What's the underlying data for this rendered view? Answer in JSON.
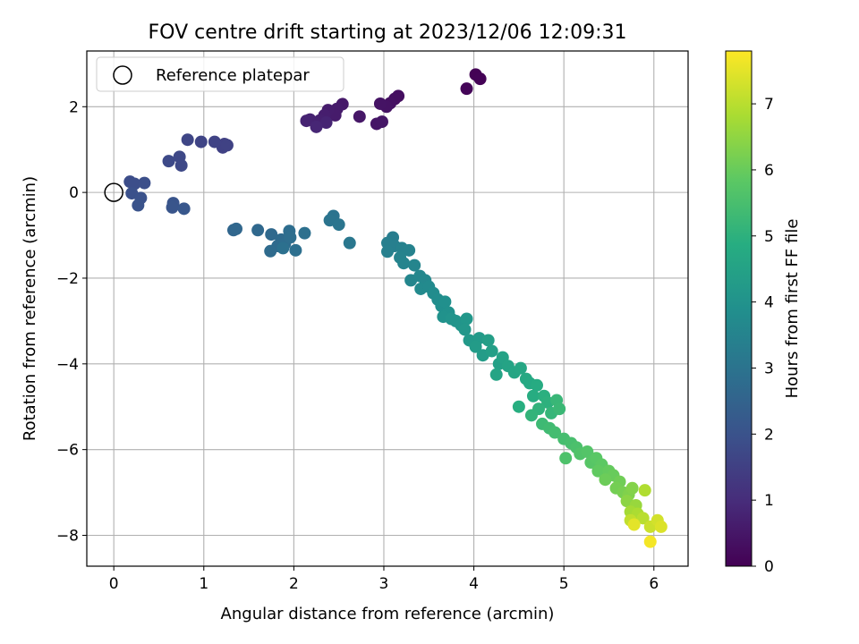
{
  "chart_data": {
    "type": "scatter",
    "title": "FOV centre drift starting at 2023/12/06 12:09:31",
    "xlabel": "Angular distance from reference (arcmin)",
    "ylabel": "Rotation from reference (arcmin)",
    "xlim": [
      -0.3,
      6.38
    ],
    "ylim": [
      -8.72,
      3.3
    ],
    "xticks": [
      0,
      1,
      2,
      3,
      4,
      5,
      6
    ],
    "yticks": [
      -8,
      -6,
      -4,
      -2,
      0,
      2
    ],
    "xtick_labels": [
      "0",
      "1",
      "2",
      "3",
      "4",
      "5",
      "6"
    ],
    "ytick_labels": [
      "−8",
      "−6",
      "−4",
      "−2",
      "0",
      "2"
    ],
    "grid": true,
    "legend": {
      "placement": "top-left",
      "entries": [
        "Reference platepar"
      ]
    },
    "reference_point": {
      "x": 0,
      "y": 0
    },
    "colorbar": {
      "label": "Hours from first FF file",
      "colormap": "viridis",
      "range": [
        0,
        7.8
      ],
      "ticks": [
        0,
        1,
        2,
        3,
        4,
        5,
        6,
        7
      ],
      "tick_labels": [
        "0",
        "1",
        "2",
        "3",
        "4",
        "5",
        "6",
        "7"
      ]
    },
    "series": [
      {
        "color_by": "hours",
        "points": [
          {
            "x": 4.02,
            "y": 2.75,
            "h": 0.02
          },
          {
            "x": 4.07,
            "y": 2.65,
            "h": 0.05
          },
          {
            "x": 3.92,
            "y": 2.42,
            "h": 0.1
          },
          {
            "x": 3.16,
            "y": 2.25,
            "h": 0.3
          },
          {
            "x": 3.12,
            "y": 2.18,
            "h": 0.32
          },
          {
            "x": 3.07,
            "y": 2.08,
            "h": 0.35
          },
          {
            "x": 3.03,
            "y": 2.0,
            "h": 0.38
          },
          {
            "x": 2.96,
            "y": 2.07,
            "h": 0.4
          },
          {
            "x": 2.92,
            "y": 1.6,
            "h": 0.45
          },
          {
            "x": 2.98,
            "y": 1.65,
            "h": 0.47
          },
          {
            "x": 2.73,
            "y": 1.77,
            "h": 0.5
          },
          {
            "x": 2.54,
            "y": 2.06,
            "h": 0.55
          },
          {
            "x": 2.48,
            "y": 1.95,
            "h": 0.58
          },
          {
            "x": 2.46,
            "y": 1.8,
            "h": 0.6
          },
          {
            "x": 2.38,
            "y": 1.92,
            "h": 0.62
          },
          {
            "x": 2.34,
            "y": 1.8,
            "h": 0.66
          },
          {
            "x": 2.29,
            "y": 1.68,
            "h": 0.7
          },
          {
            "x": 2.24,
            "y": 1.62,
            "h": 0.72
          },
          {
            "x": 2.18,
            "y": 1.7,
            "h": 0.75
          },
          {
            "x": 2.14,
            "y": 1.67,
            "h": 0.78
          },
          {
            "x": 2.36,
            "y": 1.63,
            "h": 0.8
          },
          {
            "x": 2.25,
            "y": 1.53,
            "h": 0.84
          },
          {
            "x": 1.23,
            "y": 1.13,
            "h": 1.5
          },
          {
            "x": 1.21,
            "y": 1.05,
            "h": 1.52
          },
          {
            "x": 1.26,
            "y": 1.1,
            "h": 1.55
          },
          {
            "x": 1.12,
            "y": 1.18,
            "h": 1.58
          },
          {
            "x": 0.97,
            "y": 1.18,
            "h": 1.62
          },
          {
            "x": 0.82,
            "y": 1.23,
            "h": 1.65
          },
          {
            "x": 0.73,
            "y": 0.83,
            "h": 1.7
          },
          {
            "x": 0.75,
            "y": 0.63,
            "h": 1.72
          },
          {
            "x": 0.61,
            "y": 0.73,
            "h": 1.75
          },
          {
            "x": 0.18,
            "y": 0.25,
            "h": 1.85
          },
          {
            "x": 0.23,
            "y": 0.2,
            "h": 1.88
          },
          {
            "x": 0.34,
            "y": 0.22,
            "h": 1.9
          },
          {
            "x": 0.2,
            "y": -0.02,
            "h": 1.95
          },
          {
            "x": 0.3,
            "y": -0.13,
            "h": 1.98
          },
          {
            "x": 0.27,
            "y": -0.3,
            "h": 2.0
          },
          {
            "x": 0.66,
            "y": -0.25,
            "h": 2.05
          },
          {
            "x": 0.65,
            "y": -0.35,
            "h": 2.08
          },
          {
            "x": 0.78,
            "y": -0.38,
            "h": 2.12
          },
          {
            "x": 1.33,
            "y": -0.88,
            "h": 2.6
          },
          {
            "x": 1.36,
            "y": -0.85,
            "h": 2.62
          },
          {
            "x": 1.6,
            "y": -0.88,
            "h": 2.65
          },
          {
            "x": 1.75,
            "y": -0.98,
            "h": 2.68
          },
          {
            "x": 1.86,
            "y": -1.1,
            "h": 2.7
          },
          {
            "x": 1.82,
            "y": -1.25,
            "h": 2.72
          },
          {
            "x": 1.74,
            "y": -1.37,
            "h": 2.75
          },
          {
            "x": 1.9,
            "y": -1.2,
            "h": 2.78
          },
          {
            "x": 1.95,
            "y": -0.9,
            "h": 2.8
          },
          {
            "x": 1.96,
            "y": -1.05,
            "h": 2.82
          },
          {
            "x": 2.02,
            "y": -1.35,
            "h": 2.85
          },
          {
            "x": 2.12,
            "y": -0.95,
            "h": 2.88
          },
          {
            "x": 1.88,
            "y": -1.3,
            "h": 2.9
          },
          {
            "x": 2.44,
            "y": -0.55,
            "h": 3.0
          },
          {
            "x": 2.4,
            "y": -0.65,
            "h": 3.02
          },
          {
            "x": 2.5,
            "y": -0.75,
            "h": 3.05
          },
          {
            "x": 2.62,
            "y": -1.18,
            "h": 3.1
          },
          {
            "x": 3.1,
            "y": -1.05,
            "h": 3.3
          },
          {
            "x": 3.04,
            "y": -1.18,
            "h": 3.35
          },
          {
            "x": 3.12,
            "y": -1.25,
            "h": 3.38
          },
          {
            "x": 3.04,
            "y": -1.38,
            "h": 3.4
          },
          {
            "x": 3.2,
            "y": -1.3,
            "h": 3.42
          },
          {
            "x": 3.28,
            "y": -1.35,
            "h": 3.45
          },
          {
            "x": 3.18,
            "y": -1.52,
            "h": 3.5
          },
          {
            "x": 3.22,
            "y": -1.65,
            "h": 3.52
          },
          {
            "x": 3.34,
            "y": -1.7,
            "h": 3.55
          },
          {
            "x": 3.3,
            "y": -2.05,
            "h": 3.6
          },
          {
            "x": 3.4,
            "y": -1.95,
            "h": 3.62
          },
          {
            "x": 3.46,
            "y": -2.05,
            "h": 3.65
          },
          {
            "x": 3.41,
            "y": -2.25,
            "h": 3.7
          },
          {
            "x": 3.5,
            "y": -2.2,
            "h": 3.72
          },
          {
            "x": 3.55,
            "y": -2.35,
            "h": 3.78
          },
          {
            "x": 3.6,
            "y": -2.5,
            "h": 3.82
          },
          {
            "x": 3.64,
            "y": -2.65,
            "h": 3.86
          },
          {
            "x": 3.68,
            "y": -2.55,
            "h": 3.9
          },
          {
            "x": 3.72,
            "y": -2.8,
            "h": 3.95
          },
          {
            "x": 3.66,
            "y": -2.9,
            "h": 3.98
          },
          {
            "x": 3.75,
            "y": -2.95,
            "h": 4.02
          },
          {
            "x": 3.8,
            "y": -3.0,
            "h": 4.05
          },
          {
            "x": 3.86,
            "y": -3.1,
            "h": 4.08
          },
          {
            "x": 3.92,
            "y": -2.95,
            "h": 4.12
          },
          {
            "x": 3.9,
            "y": -3.2,
            "h": 4.15
          },
          {
            "x": 3.95,
            "y": -3.45,
            "h": 4.2
          },
          {
            "x": 4.06,
            "y": -3.4,
            "h": 4.25
          },
          {
            "x": 4.02,
            "y": -3.6,
            "h": 4.28
          },
          {
            "x": 4.1,
            "y": -3.8,
            "h": 4.32
          },
          {
            "x": 4.16,
            "y": -3.45,
            "h": 4.36
          },
          {
            "x": 4.2,
            "y": -3.7,
            "h": 4.4
          },
          {
            "x": 4.28,
            "y": -4.0,
            "h": 4.45
          },
          {
            "x": 4.32,
            "y": -3.85,
            "h": 4.5
          },
          {
            "x": 4.38,
            "y": -4.05,
            "h": 4.55
          },
          {
            "x": 4.25,
            "y": -4.25,
            "h": 4.58
          },
          {
            "x": 4.45,
            "y": -4.2,
            "h": 4.62
          },
          {
            "x": 4.52,
            "y": -4.1,
            "h": 4.65
          },
          {
            "x": 4.58,
            "y": -4.35,
            "h": 4.7
          },
          {
            "x": 4.62,
            "y": -4.45,
            "h": 4.75
          },
          {
            "x": 4.7,
            "y": -4.5,
            "h": 4.8
          },
          {
            "x": 4.66,
            "y": -4.75,
            "h": 4.85
          },
          {
            "x": 4.5,
            "y": -5.0,
            "h": 4.9
          },
          {
            "x": 4.78,
            "y": -4.75,
            "h": 4.95
          },
          {
            "x": 4.82,
            "y": -4.9,
            "h": 5.0
          },
          {
            "x": 4.72,
            "y": -5.05,
            "h": 5.05
          },
          {
            "x": 4.64,
            "y": -5.2,
            "h": 5.1
          },
          {
            "x": 4.86,
            "y": -5.15,
            "h": 5.15
          },
          {
            "x": 4.92,
            "y": -4.85,
            "h": 5.2
          },
          {
            "x": 4.95,
            "y": -5.05,
            "h": 5.25
          },
          {
            "x": 4.76,
            "y": -5.4,
            "h": 5.3
          },
          {
            "x": 4.84,
            "y": -5.5,
            "h": 5.35
          },
          {
            "x": 4.9,
            "y": -5.6,
            "h": 5.4
          },
          {
            "x": 5.0,
            "y": -5.75,
            "h": 5.45
          },
          {
            "x": 5.08,
            "y": -5.85,
            "h": 5.5
          },
          {
            "x": 5.14,
            "y": -5.95,
            "h": 5.55
          },
          {
            "x": 5.02,
            "y": -6.2,
            "h": 5.6
          },
          {
            "x": 5.18,
            "y": -6.1,
            "h": 5.65
          },
          {
            "x": 5.26,
            "y": -6.05,
            "h": 5.7
          },
          {
            "x": 5.3,
            "y": -6.3,
            "h": 5.75
          },
          {
            "x": 5.36,
            "y": -6.2,
            "h": 5.8
          },
          {
            "x": 5.42,
            "y": -6.35,
            "h": 5.85
          },
          {
            "x": 5.38,
            "y": -6.5,
            "h": 5.9
          },
          {
            "x": 5.5,
            "y": -6.5,
            "h": 5.95
          },
          {
            "x": 5.55,
            "y": -6.6,
            "h": 6.0
          },
          {
            "x": 5.46,
            "y": -6.7,
            "h": 6.05
          },
          {
            "x": 5.62,
            "y": -6.75,
            "h": 6.1
          },
          {
            "x": 5.58,
            "y": -6.9,
            "h": 6.15
          },
          {
            "x": 5.66,
            "y": -7.0,
            "h": 6.2
          },
          {
            "x": 5.72,
            "y": -7.05,
            "h": 6.3
          },
          {
            "x": 5.76,
            "y": -6.9,
            "h": 6.35
          },
          {
            "x": 5.7,
            "y": -7.2,
            "h": 6.45
          },
          {
            "x": 5.8,
            "y": -7.3,
            "h": 6.6
          },
          {
            "x": 5.74,
            "y": -7.45,
            "h": 6.75
          },
          {
            "x": 5.82,
            "y": -7.5,
            "h": 6.85
          },
          {
            "x": 5.9,
            "y": -6.95,
            "h": 6.9
          },
          {
            "x": 5.88,
            "y": -7.6,
            "h": 7.0
          },
          {
            "x": 5.74,
            "y": -7.65,
            "h": 7.1
          },
          {
            "x": 5.96,
            "y": -7.8,
            "h": 7.2
          },
          {
            "x": 6.04,
            "y": -7.65,
            "h": 7.3
          },
          {
            "x": 6.08,
            "y": -7.8,
            "h": 7.4
          },
          {
            "x": 5.78,
            "y": -7.75,
            "h": 7.5
          },
          {
            "x": 5.96,
            "y": -8.15,
            "h": 7.7
          }
        ]
      }
    ]
  }
}
